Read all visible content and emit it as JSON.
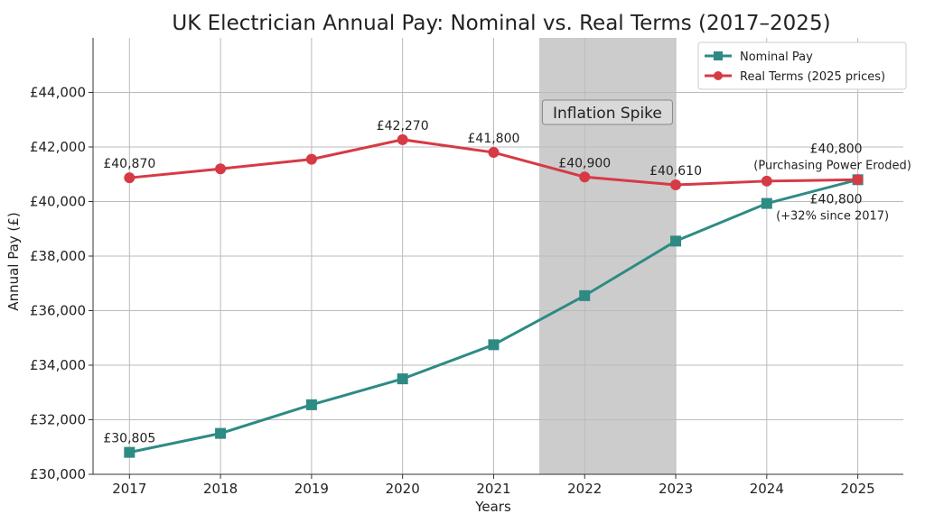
{
  "chart_data": {
    "type": "line",
    "title": "UK Electrician Annual Pay: Nominal vs. Real Terms (2017–2025)",
    "xlabel": "Years",
    "ylabel": "Annual Pay (£)",
    "x": [
      2017,
      2018,
      2019,
      2020,
      2021,
      2022,
      2023,
      2024,
      2025
    ],
    "xlim": [
      2016.6,
      2025.5
    ],
    "ylim": [
      30000,
      46000
    ],
    "yticks": [
      30000,
      32000,
      34000,
      36000,
      38000,
      40000,
      42000,
      44000
    ],
    "ytick_labels": [
      "£30,000",
      "£32,000",
      "£34,000",
      "£36,000",
      "£38,000",
      "£40,000",
      "£42,000",
      "£44,000"
    ],
    "grid": true,
    "legend": "top-right",
    "series": [
      {
        "name": "Nominal Pay",
        "color": "#2e8b84",
        "marker": "square",
        "values": [
          30805,
          31500,
          32550,
          33500,
          34750,
          36550,
          38550,
          39930,
          40800
        ]
      },
      {
        "name": "Real Terms (2025 prices)",
        "color": "#d63a45",
        "marker": "circle",
        "values": [
          40870,
          41200,
          41550,
          42270,
          41800,
          40900,
          40610,
          40750,
          40800
        ]
      }
    ],
    "shaded_region": {
      "x": [
        2021.5,
        2023
      ],
      "label": "Inflation Spike",
      "color": "#cccccc"
    },
    "annotations": [
      {
        "series": 1,
        "x": 2017,
        "text": "£40,870"
      },
      {
        "series": 1,
        "x": 2020,
        "text": "£42,270"
      },
      {
        "series": 1,
        "x": 2021,
        "text": "£41,800"
      },
      {
        "series": 1,
        "x": 2022,
        "text": "£40,900"
      },
      {
        "series": 1,
        "x": 2023,
        "text": "£40,610"
      },
      {
        "series": 1,
        "x": 2025,
        "text": "£40,800",
        "note": "(Purchasing Power Eroded)"
      },
      {
        "series": 0,
        "x": 2017,
        "text": "£30,805"
      },
      {
        "series": 0,
        "x": 2025,
        "text": "£40,800",
        "note": "(+32% since 2017)"
      }
    ]
  }
}
